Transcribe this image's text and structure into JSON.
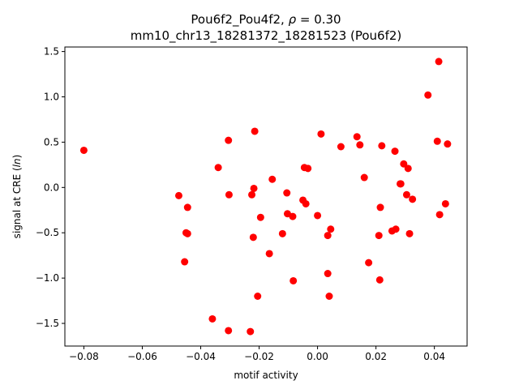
{
  "chart_data": {
    "type": "scatter",
    "title_parts": [
      "Pou6f2_Pou4f2, ",
      "ρ",
      " = 0.30"
    ],
    "subtitle": "mm10_chr13_18281372_18281523 (Pou6f2)",
    "xlabel": "motif activity",
    "ylabel_parts": [
      "signal at CRE (",
      "ln",
      ")"
    ],
    "xlim": [
      -0.0865,
      0.0512
    ],
    "ylim": [
      -1.75,
      1.55
    ],
    "x_ticks": [
      -0.08,
      -0.06,
      -0.04,
      -0.02,
      0.0,
      0.02,
      0.04
    ],
    "x_tick_labels": [
      "−0.08",
      "−0.06",
      "−0.04",
      "−0.02",
      "0.00",
      "0.02",
      "0.04"
    ],
    "y_ticks": [
      -1.5,
      -1.0,
      -0.5,
      0.0,
      0.5,
      1.0,
      1.5
    ],
    "y_tick_labels": [
      "−1.5",
      "−1.0",
      "−0.5",
      "0.0",
      "0.5",
      "1.0",
      "1.5"
    ],
    "grid": false,
    "marker_color": "#ff0000",
    "points": [
      [
        -0.08,
        0.41
      ],
      [
        -0.0475,
        -0.09
      ],
      [
        -0.0455,
        -0.82
      ],
      [
        -0.045,
        -0.5
      ],
      [
        -0.0445,
        -0.22
      ],
      [
        -0.0445,
        -0.51
      ],
      [
        -0.036,
        -1.45
      ],
      [
        -0.034,
        0.22
      ],
      [
        -0.0305,
        0.52
      ],
      [
        -0.0303,
        -0.08
      ],
      [
        -0.0305,
        -1.58
      ],
      [
        -0.023,
        -1.59
      ],
      [
        -0.0225,
        -0.08
      ],
      [
        -0.022,
        -0.55
      ],
      [
        -0.0218,
        -0.01
      ],
      [
        -0.0215,
        0.62
      ],
      [
        -0.0205,
        -1.2
      ],
      [
        -0.0195,
        -0.33
      ],
      [
        -0.0165,
        -0.73
      ],
      [
        -0.0155,
        0.09
      ],
      [
        -0.012,
        -0.51
      ],
      [
        -0.0105,
        -0.06
      ],
      [
        -0.0103,
        -0.29
      ],
      [
        -0.0085,
        -0.32
      ],
      [
        -0.0083,
        -1.03
      ],
      [
        -0.005,
        -0.14
      ],
      [
        -0.0045,
        0.22
      ],
      [
        -0.004,
        -0.18
      ],
      [
        -0.0033,
        0.21
      ],
      [
        0.0,
        -0.31
      ],
      [
        0.0012,
        0.59
      ],
      [
        0.0035,
        -0.53
      ],
      [
        0.0035,
        -0.95
      ],
      [
        0.004,
        -1.2
      ],
      [
        0.0045,
        -0.46
      ],
      [
        0.008,
        0.45
      ],
      [
        0.0135,
        0.56
      ],
      [
        0.0145,
        0.47
      ],
      [
        0.016,
        0.11
      ],
      [
        0.0175,
        -0.83
      ],
      [
        0.021,
        -0.53
      ],
      [
        0.0213,
        -1.02
      ],
      [
        0.0215,
        -0.22
      ],
      [
        0.022,
        0.46
      ],
      [
        0.0255,
        -0.48
      ],
      [
        0.0265,
        0.4
      ],
      [
        0.0268,
        -0.46
      ],
      [
        0.0283,
        0.04
      ],
      [
        0.0285,
        0.04
      ],
      [
        0.0295,
        0.26
      ],
      [
        0.0305,
        -0.08
      ],
      [
        0.031,
        0.21
      ],
      [
        0.0315,
        -0.51
      ],
      [
        0.0325,
        -0.13
      ],
      [
        0.0378,
        1.02
      ],
      [
        0.041,
        0.51
      ],
      [
        0.0415,
        1.39
      ],
      [
        0.0418,
        -0.3
      ],
      [
        0.0438,
        -0.18
      ],
      [
        0.0445,
        0.48
      ]
    ]
  }
}
